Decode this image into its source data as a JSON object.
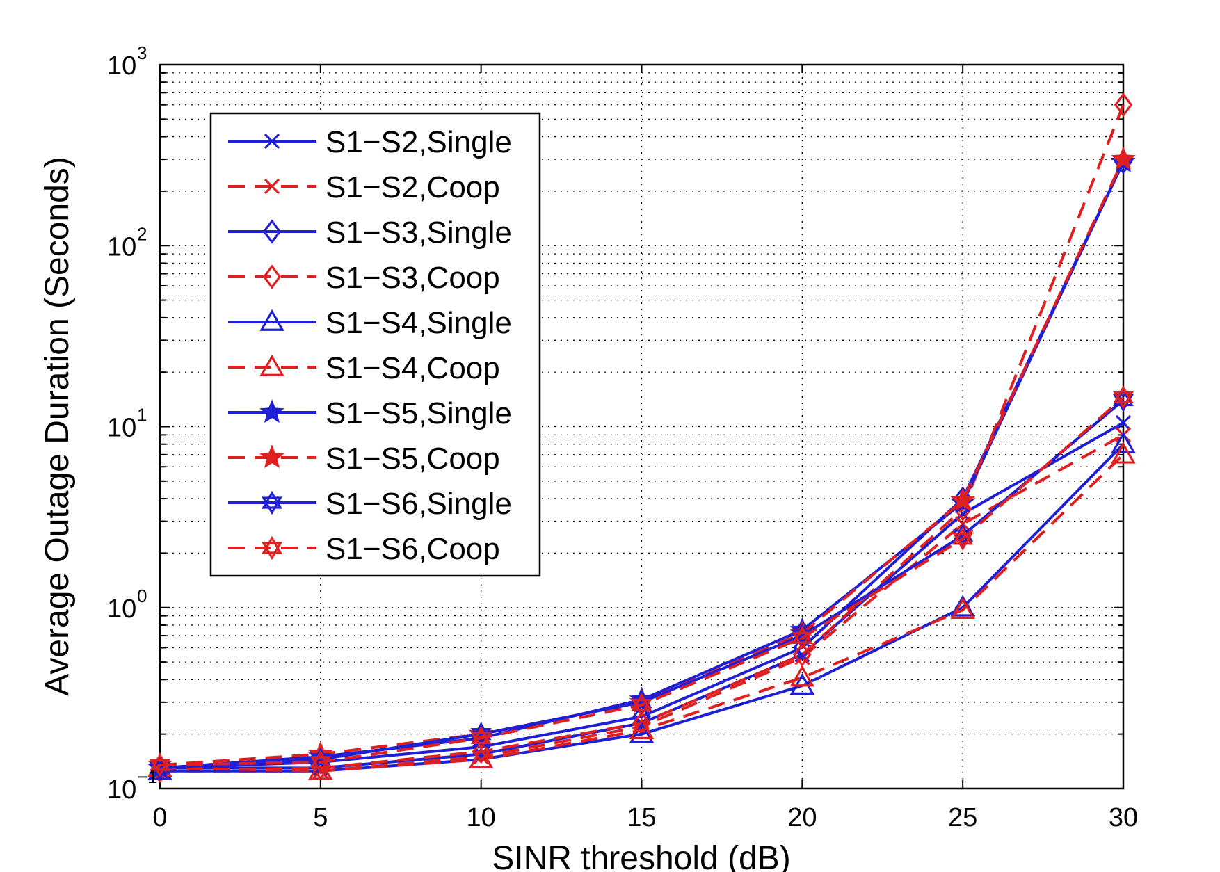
{
  "chart_data": {
    "type": "line",
    "title": "",
    "xlabel": "SINR threshold (dB)",
    "ylabel": "Average Outage Duration (Seconds)",
    "x": [
      0,
      5,
      10,
      15,
      20,
      25,
      30
    ],
    "xlim": [
      0,
      30
    ],
    "xticks": [
      "0",
      "5",
      "10",
      "15",
      "20",
      "25",
      "30"
    ],
    "yscale": "log",
    "ylim": [
      0.1,
      1000
    ],
    "yticks": [
      {
        "base": "10",
        "exp": "−1"
      },
      {
        "base": "10",
        "exp": "0"
      },
      {
        "base": "10",
        "exp": "1"
      },
      {
        "base": "10",
        "exp": "2"
      },
      {
        "base": "10",
        "exp": "3"
      }
    ],
    "grid": true,
    "legend_position": "top-left",
    "series": [
      {
        "name": "S1−S2,Single",
        "color": "#1f1fd6",
        "dash": "solid",
        "marker": "x",
        "values": [
          0.13,
          0.13,
          0.155,
          0.23,
          0.55,
          3.3,
          10.5
        ]
      },
      {
        "name": "S1−S2,Coop",
        "color": "#e02020",
        "dash": "dashed",
        "marker": "x",
        "values": [
          0.125,
          0.125,
          0.15,
          0.22,
          0.53,
          2.9,
          9.0
        ]
      },
      {
        "name": "S1−S3,Single",
        "color": "#1f1fd6",
        "dash": "solid",
        "marker": "diamond",
        "values": [
          0.13,
          0.14,
          0.17,
          0.25,
          0.6,
          4.0,
          290
        ]
      },
      {
        "name": "S1−S3,Coop",
        "color": "#e02020",
        "dash": "dashed",
        "marker": "diamond",
        "values": [
          0.125,
          0.13,
          0.16,
          0.23,
          0.55,
          3.5,
          600
        ]
      },
      {
        "name": "S1−S4,Single",
        "color": "#1f1fd6",
        "dash": "solid",
        "marker": "triangle",
        "values": [
          0.125,
          0.125,
          0.145,
          0.2,
          0.37,
          1.0,
          8.0
        ]
      },
      {
        "name": "S1−S4,Coop",
        "color": "#e02020",
        "dash": "dashed",
        "marker": "triangle",
        "values": [
          0.13,
          0.125,
          0.145,
          0.21,
          0.41,
          0.97,
          7.0
        ]
      },
      {
        "name": "S1−S5,Single",
        "color": "#1f1fd6",
        "dash": "solid",
        "marker": "star",
        "values": [
          0.13,
          0.15,
          0.19,
          0.31,
          0.75,
          3.8,
          290
        ]
      },
      {
        "name": "S1−S5,Coop",
        "color": "#e02020",
        "dash": "dashed",
        "marker": "star",
        "values": [
          0.135,
          0.155,
          0.2,
          0.3,
          0.72,
          3.9,
          300
        ]
      },
      {
        "name": "S1−S6,Single",
        "color": "#1f1fd6",
        "dash": "solid",
        "marker": "hexagram",
        "values": [
          0.13,
          0.145,
          0.2,
          0.3,
          0.7,
          2.5,
          14
        ]
      },
      {
        "name": "S1−S6,Coop",
        "color": "#e02020",
        "dash": "dashed",
        "marker": "hexagram",
        "values": [
          0.135,
          0.14,
          0.19,
          0.29,
          0.68,
          2.4,
          14.5
        ]
      }
    ]
  }
}
